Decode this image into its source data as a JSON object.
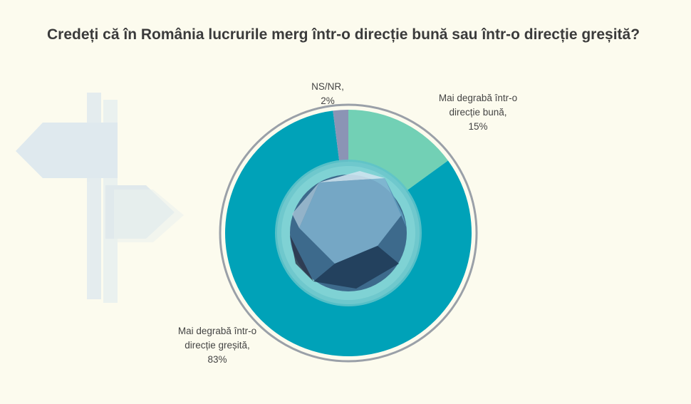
{
  "title": "Credeți că în România lucrurile merg într-o direcție bună sau într-o direcție greșită?",
  "chart_data": {
    "type": "pie",
    "donut": true,
    "categories": [
      "Mai degrabă într-o direcție bună",
      "Mai degrabă într-o direcție greșită",
      "NS/NR"
    ],
    "values": [
      15,
      83,
      2
    ],
    "colors": [
      "#72d0b5",
      "#00a2b8",
      "#8b94b5"
    ],
    "data_labels": [
      {
        "line1": "Mai degrabă într-o",
        "line2": "direcție bună,",
        "line3": "15%"
      },
      {
        "line1": "Mai degrabă într-o",
        "line2": "direcție greșită,",
        "line3": "83%"
      },
      {
        "line1": "NS/NR,",
        "line2": "2%",
        "line3": ""
      }
    ],
    "legend": "none"
  }
}
